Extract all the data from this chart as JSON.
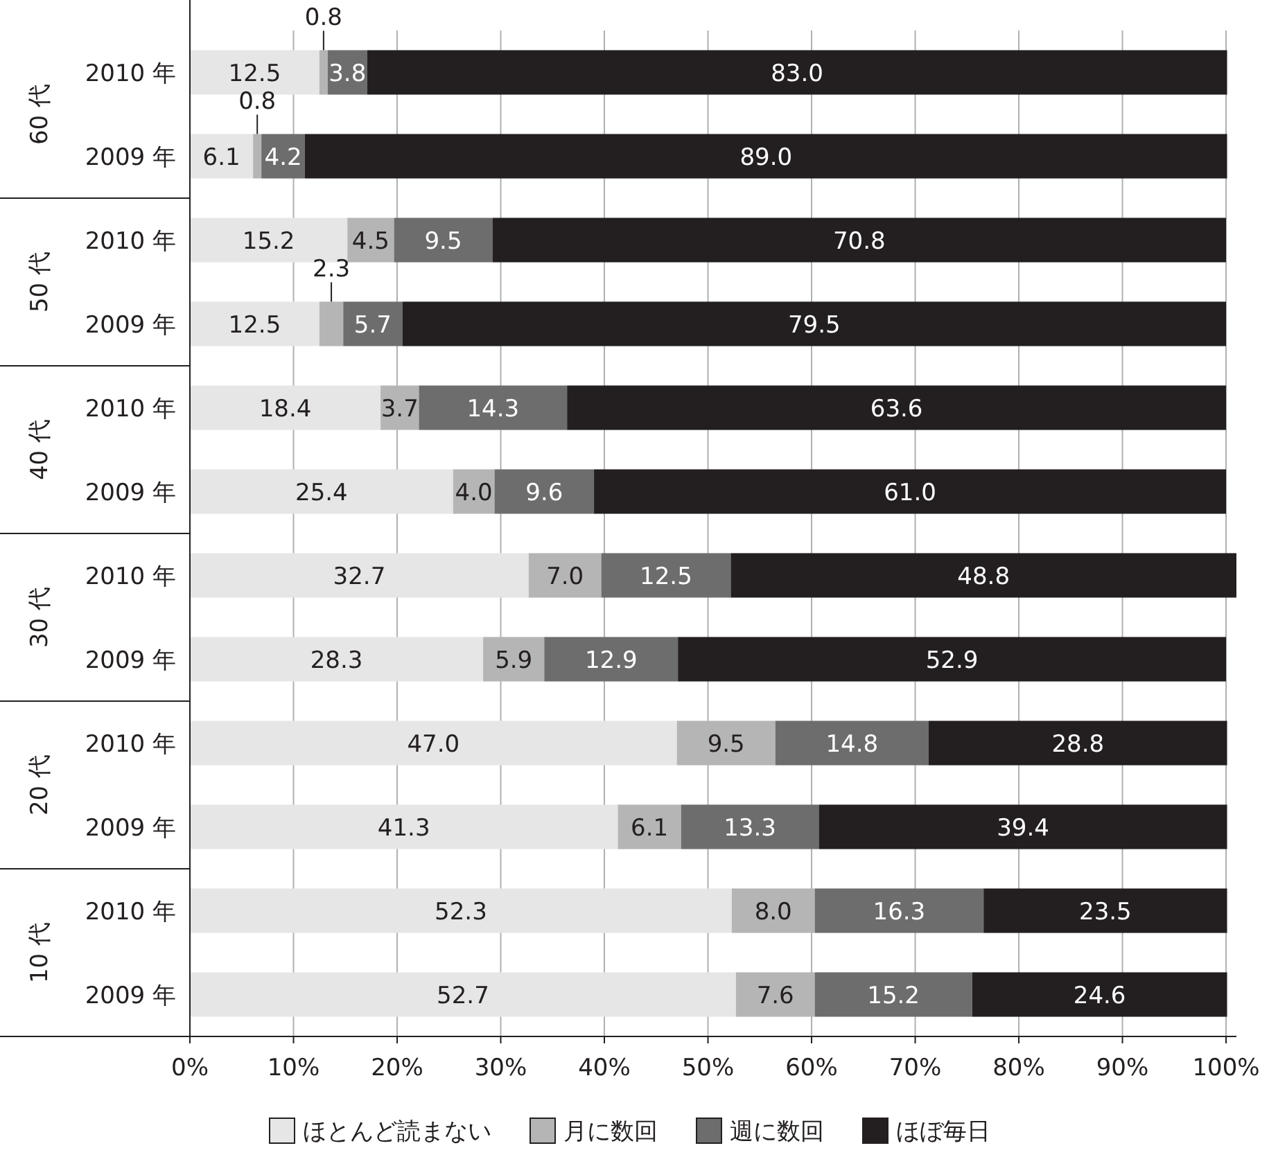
{
  "chart_data": {
    "type": "bar",
    "orientation": "horizontal",
    "stacked": true,
    "grid": "x",
    "legend": "bottom",
    "categories": [
      "2010 年",
      "2009 年",
      "2010 年",
      "2009 年",
      "2010 年",
      "2009 年",
      "2010 年",
      "2009 年",
      "2010 年",
      "2009 年",
      "2010 年",
      "2009 年"
    ],
    "annotations": [
      "60 代",
      "50 代",
      "40 代",
      "30 代",
      "20 代",
      "10 代"
    ],
    "xlim": [
      0,
      101
    ],
    "xticks": [
      {
        "value": 0,
        "label": "0%"
      },
      {
        "value": 10,
        "label": "10%"
      },
      {
        "value": 20,
        "label": "20%"
      },
      {
        "value": 30,
        "label": "30%"
      },
      {
        "value": 40,
        "label": "40%"
      },
      {
        "value": 50,
        "label": "50%"
      },
      {
        "value": 60,
        "label": "60%"
      },
      {
        "value": 70,
        "label": "70%"
      },
      {
        "value": 80,
        "label": "80%"
      },
      {
        "value": 90,
        "label": "90%"
      },
      {
        "value": 100,
        "label": "100%"
      }
    ],
    "series": [
      {
        "name": "ほとんど読まない",
        "color": "#e6e6e6",
        "values": [
          12.5,
          6.1,
          15.2,
          12.5,
          18.4,
          25.4,
          32.7,
          28.3,
          47.0,
          41.3,
          52.3,
          52.7
        ],
        "value_labels": [
          "12.5",
          "6.1",
          "15.2",
          "12.5",
          "18.4",
          "25.4",
          "32.7",
          "28.3",
          "47.0",
          "41.3",
          "52.3",
          "52.7"
        ]
      },
      {
        "name": "月に数回",
        "color": "#b5b5b5",
        "values": [
          0.8,
          0.8,
          4.5,
          2.3,
          3.7,
          4.0,
          7.0,
          5.9,
          9.5,
          6.1,
          8.0,
          7.6
        ],
        "value_labels": [
          "0.8",
          "0.8",
          "4.5",
          "2.3",
          "3.7",
          "4.0",
          "7.0",
          "5.9",
          "9.5",
          "6.1",
          "8.0",
          "7.6"
        ]
      },
      {
        "name": "週に数回",
        "color": "#6d6d6d",
        "values": [
          3.8,
          4.2,
          9.5,
          5.7,
          14.3,
          9.6,
          12.5,
          12.9,
          14.8,
          13.3,
          16.3,
          15.2
        ],
        "value_labels": [
          "3.8",
          "4.2",
          "9.5",
          "5.7",
          "14.3",
          "9.6",
          "12.5",
          "12.9",
          "14.8",
          "13.3",
          "16.3",
          "15.2"
        ]
      },
      {
        "name": "ほぼ毎日",
        "color": "#231f20",
        "values": [
          83.0,
          89.0,
          70.8,
          79.5,
          63.6,
          61.0,
          48.8,
          52.9,
          28.8,
          39.4,
          23.5,
          24.6
        ],
        "value_labels": [
          "83.0",
          "89.0",
          "70.8",
          "79.5",
          "63.6",
          "61.0",
          "48.8",
          "52.9",
          "28.8",
          "39.4",
          "23.5",
          "24.6"
        ]
      }
    ]
  }
}
